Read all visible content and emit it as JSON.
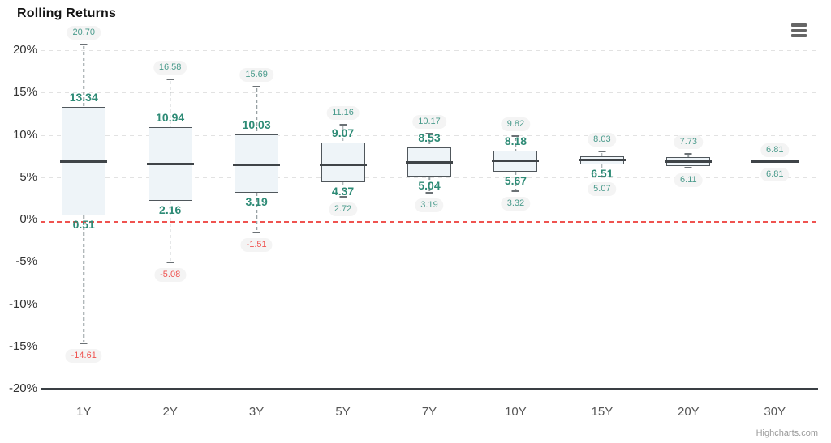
{
  "chart_data": {
    "type": "boxplot",
    "title": "Rolling Returns",
    "categories": [
      "1Y",
      "2Y",
      "3Y",
      "5Y",
      "7Y",
      "10Y",
      "15Y",
      "20Y",
      "30Y"
    ],
    "xlabel": "",
    "ylabel": "",
    "ylim": [
      -20,
      20
    ],
    "ytick_step": 5,
    "yticks": [
      {
        "value": 20,
        "label": "20%"
      },
      {
        "value": 15,
        "label": "15%"
      },
      {
        "value": 10,
        "label": "10%"
      },
      {
        "value": 5,
        "label": "5%"
      },
      {
        "value": 0,
        "label": "0%"
      },
      {
        "value": -5,
        "label": "-5%"
      },
      {
        "value": -10,
        "label": "-10%"
      },
      {
        "value": -15,
        "label": "-15%"
      },
      {
        "value": -20,
        "label": "-20%"
      }
    ],
    "grid": "dashed",
    "legend": "none",
    "plot_line": {
      "value": -0.3,
      "color": "#ef5350",
      "style": "dashed"
    },
    "medians_estimated": true,
    "series": [
      {
        "name": "Rolling Returns",
        "points": [
          {
            "category": "1Y",
            "high": 20.7,
            "q3": 13.34,
            "median": 6.85,
            "q1": 0.51,
            "low": -14.61,
            "labels": {
              "high": "20.70",
              "q3": "13.34",
              "q1": "0.51",
              "low": "-14.61"
            }
          },
          {
            "category": "2Y",
            "high": 16.58,
            "q3": 10.94,
            "median": 6.6,
            "q1": 2.16,
            "low": -5.08,
            "labels": {
              "high": "16.58",
              "q3": "10.94",
              "q1": "2.16",
              "low": "-5.08"
            }
          },
          {
            "category": "3Y",
            "high": 15.69,
            "q3": 10.03,
            "median": 6.5,
            "q1": 3.19,
            "low": -1.51,
            "labels": {
              "high": "15.69",
              "q3": "10.03",
              "q1": "3.19",
              "low": "-1.51"
            }
          },
          {
            "category": "5Y",
            "high": 11.16,
            "q3": 9.07,
            "median": 6.45,
            "q1": 4.37,
            "low": 2.72,
            "labels": {
              "high": "11.16",
              "q3": "9.07",
              "q1": "4.37",
              "low": "2.72"
            }
          },
          {
            "category": "7Y",
            "high": 10.17,
            "q3": 8.53,
            "median": 6.7,
            "q1": 5.04,
            "low": 3.19,
            "labels": {
              "high": "10.17",
              "q3": "8.53",
              "q1": "5.04",
              "low": "3.19"
            }
          },
          {
            "category": "10Y",
            "high": 9.82,
            "q3": 8.18,
            "median": 6.9,
            "q1": 5.67,
            "low": 3.32,
            "labels": {
              "high": "9.82",
              "q3": "8.18",
              "q1": "5.67",
              "low": "3.32"
            }
          },
          {
            "category": "15Y",
            "high": 8.03,
            "q3": 7.45,
            "median": 7.0,
            "q1": 6.51,
            "low": 5.07,
            "labels": {
              "high": "8.03",
              "q3": null,
              "q1": "6.51",
              "low": "5.07"
            }
          },
          {
            "category": "20Y",
            "high": 7.73,
            "q3": 7.35,
            "median": 6.85,
            "q1": 6.35,
            "low": 6.11,
            "labels": {
              "high": "7.73",
              "q3": null,
              "q1": null,
              "low": "6.11"
            }
          },
          {
            "category": "30Y",
            "high": 6.81,
            "q3": 6.81,
            "median": 6.81,
            "q1": 6.81,
            "low": 6.81,
            "labels": {
              "high": "6.81",
              "q3": null,
              "q1": null,
              "low": "6.81"
            }
          }
        ]
      }
    ],
    "colors": {
      "box_fill": "#eef4f8",
      "box_border": "#50575c",
      "median": "#3f4448",
      "whisker": "#97a0a3",
      "label_positive": "#2e8b76",
      "label_negative": "#ef5350",
      "pill_background": "#f4f4f4",
      "plot_line_red": "#ef5350",
      "gridline": "#e2e2e2"
    }
  },
  "controls": {
    "context_menu_icon": "hamburger-icon"
  },
  "credits": {
    "label": "Highcharts.com"
  }
}
